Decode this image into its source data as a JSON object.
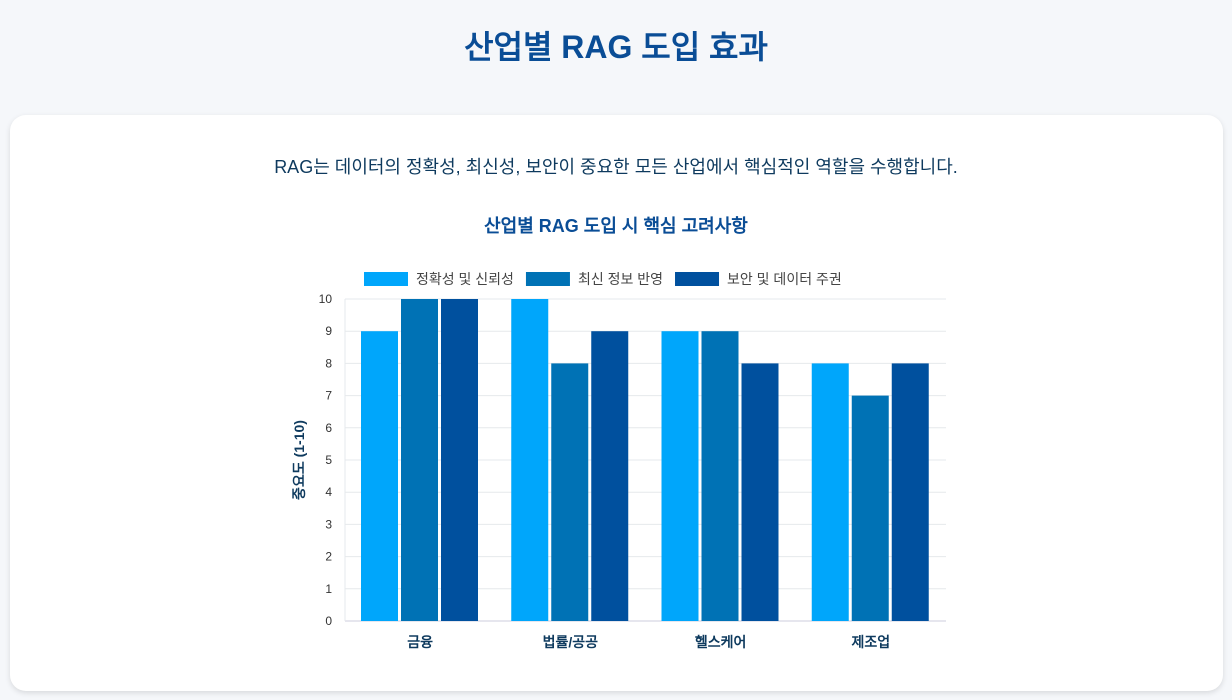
{
  "page_title": "산업별 RAG 도입 효과",
  "description": "RAG는 데이터의 정확성, 최신성, 보안이 중요한 모든 산업에서 핵심적인 역할을 수행합니다.",
  "chart_data": {
    "type": "bar",
    "title": "산업별 RAG 도입 시 핵심 고려사항",
    "xlabel": "",
    "ylabel": "중요도 (1-10)",
    "ylim": [
      0,
      10
    ],
    "yticks": [
      "0",
      "1",
      "2",
      "3",
      "4",
      "5",
      "6",
      "7",
      "8",
      "9",
      "10"
    ],
    "categories": [
      "금융",
      "법률/공공",
      "헬스케어",
      "제조업"
    ],
    "legend_position": "top",
    "grid": true,
    "series": [
      {
        "name": "정확성 및 신뢰성",
        "color": "#00a6fb",
        "values": [
          9,
          10,
          9,
          8
        ]
      },
      {
        "name": "최신 정보 반영",
        "color": "#0072b5",
        "values": [
          10,
          8,
          9,
          7
        ]
      },
      {
        "name": "보안 및 데이터 주권",
        "color": "#00509e",
        "values": [
          10,
          9,
          8,
          8
        ]
      }
    ]
  }
}
